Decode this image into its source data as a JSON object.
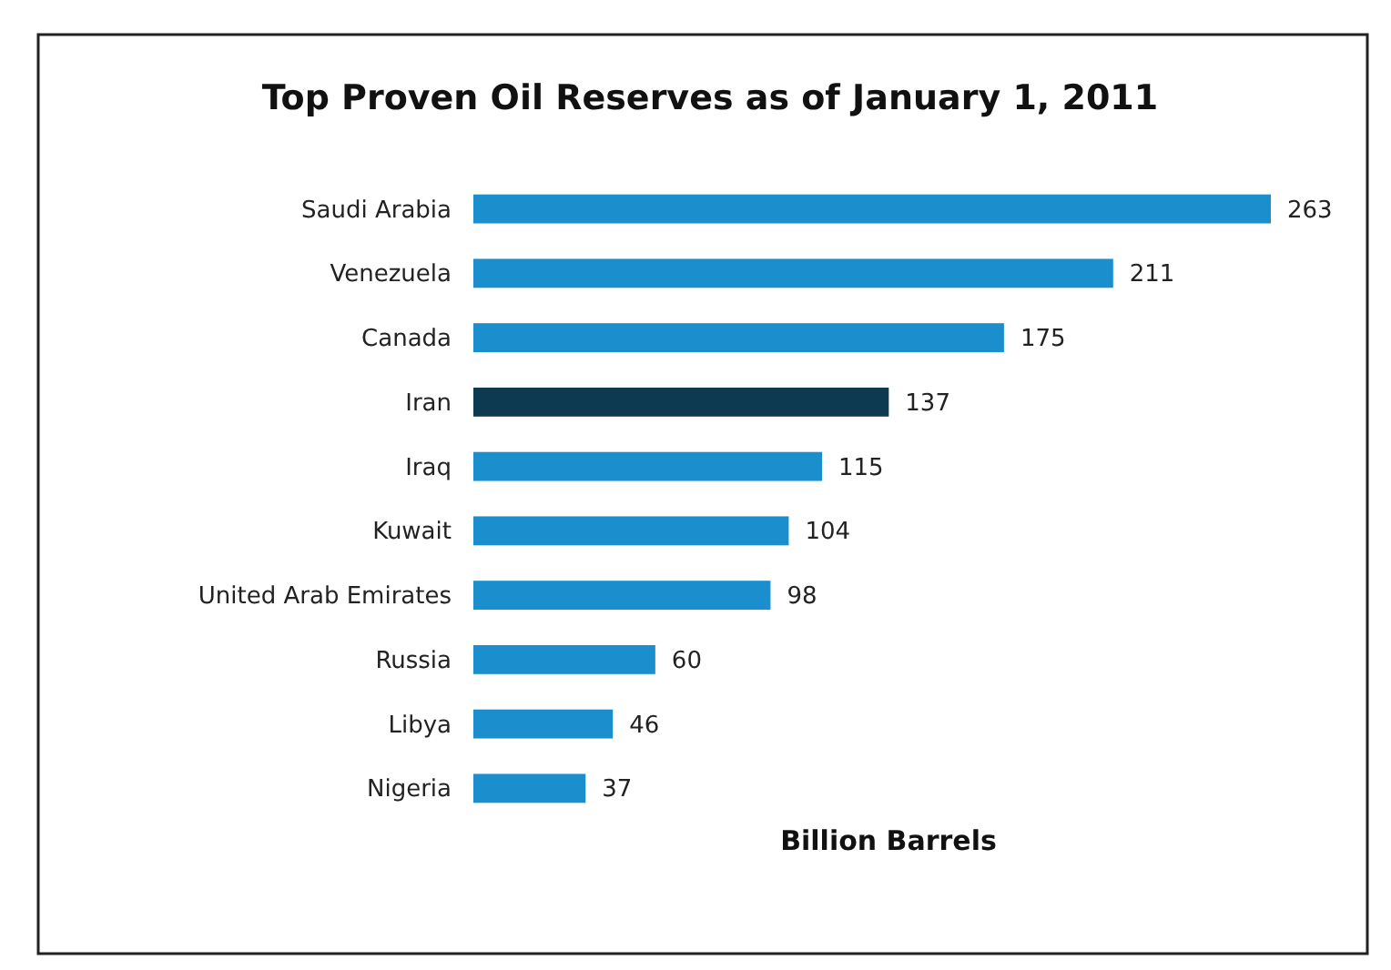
{
  "chart_data": {
    "type": "bar",
    "orientation": "horizontal",
    "title": "Top Proven Oil Reserves as of January 1, 2011",
    "xlabel": "Billion Barrels",
    "categories": [
      "Saudi Arabia",
      "Venezuela",
      "Canada",
      "Iran",
      "Iraq",
      "Kuwait",
      "United Arab Emirates",
      "Russia",
      "Libya",
      "Nigeria"
    ],
    "values": [
      263,
      211,
      175,
      137,
      115,
      104,
      98,
      60,
      46,
      37
    ],
    "colors": [
      "#1b8fce",
      "#1b8fce",
      "#1b8fce",
      "#0d3a50",
      "#1b8fce",
      "#1b8fce",
      "#1b8fce",
      "#1b8fce",
      "#1b8fce",
      "#1b8fce"
    ],
    "data_labels": true
  }
}
